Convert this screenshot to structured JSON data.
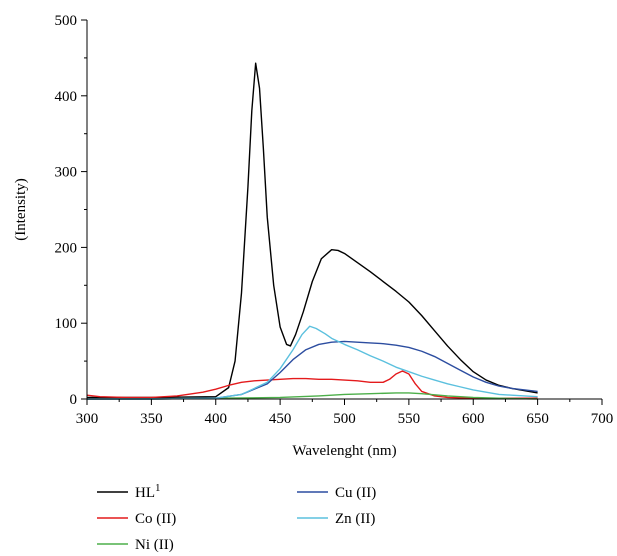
{
  "chart_data": {
    "type": "line",
    "xlabel": "Wavelenght (nm)",
    "ylabel": "(Intensity)",
    "xlim": [
      300,
      700
    ],
    "ylim": [
      0,
      500
    ],
    "x_ticks": [
      300,
      350,
      400,
      450,
      500,
      550,
      600,
      650,
      700
    ],
    "y_ticks": [
      0,
      100,
      200,
      300,
      400,
      500
    ],
    "grid": false,
    "legend_position": "bottom",
    "series": [
      {
        "name": "HL",
        "name_superscript": "1",
        "color": "#000000",
        "x": [
          300,
          350,
          400,
          410,
          415,
          420,
          425,
          428,
          431,
          434,
          437,
          440,
          445,
          450,
          455,
          458,
          462,
          468,
          475,
          482,
          490,
          495,
          500,
          510,
          520,
          530,
          540,
          550,
          560,
          570,
          580,
          590,
          600,
          610,
          620,
          630,
          640,
          650
        ],
        "y": [
          2,
          2,
          3,
          15,
          50,
          140,
          280,
          380,
          443,
          410,
          330,
          240,
          150,
          95,
          72,
          70,
          85,
          115,
          155,
          185,
          197,
          196,
          192,
          180,
          168,
          155,
          142,
          128,
          110,
          90,
          70,
          52,
          36,
          25,
          18,
          14,
          11,
          8
        ]
      },
      {
        "name": "Co (II)",
        "color": "#e41a1c",
        "x": [
          300,
          310,
          330,
          350,
          370,
          390,
          400,
          410,
          420,
          430,
          440,
          450,
          460,
          470,
          480,
          490,
          500,
          510,
          520,
          530,
          535,
          540,
          545,
          550,
          555,
          560,
          570,
          580,
          600,
          620,
          650
        ],
        "y": [
          5,
          3,
          2,
          2,
          4,
          9,
          13,
          18,
          22,
          24,
          25,
          26,
          27,
          27,
          26,
          26,
          25,
          24,
          22,
          22,
          26,
          33,
          37,
          33,
          20,
          10,
          4,
          2,
          1,
          1,
          1
        ]
      },
      {
        "name": "Ni (II)",
        "color": "#4daf4a",
        "x": [
          300,
          350,
          400,
          450,
          480,
          500,
          520,
          540,
          550,
          560,
          580,
          600,
          620,
          650
        ],
        "y": [
          0,
          0,
          1,
          2,
          4,
          6,
          7,
          8,
          8,
          7,
          4,
          2,
          1,
          0
        ]
      },
      {
        "name": "Cu (II)",
        "color": "#2c4da0",
        "x": [
          300,
          350,
          400,
          420,
          440,
          450,
          460,
          470,
          480,
          490,
          500,
          510,
          520,
          530,
          540,
          550,
          560,
          570,
          580,
          590,
          600,
          610,
          620,
          630,
          640,
          650
        ],
        "y": [
          0,
          0,
          1,
          6,
          20,
          35,
          52,
          65,
          72,
          75,
          76,
          75,
          74,
          73,
          71,
          68,
          63,
          56,
          47,
          38,
          29,
          22,
          17,
          14,
          12,
          10
        ]
      },
      {
        "name": "Zn (II)",
        "color": "#5bc0de",
        "x": [
          300,
          350,
          400,
          420,
          440,
          450,
          460,
          467,
          473,
          478,
          485,
          490,
          500,
          510,
          520,
          530,
          540,
          550,
          560,
          570,
          580,
          590,
          600,
          610,
          620,
          630,
          640,
          650
        ],
        "y": [
          0,
          0,
          1,
          6,
          22,
          40,
          65,
          85,
          96,
          93,
          86,
          80,
          72,
          65,
          57,
          50,
          42,
          36,
          30,
          25,
          20,
          16,
          12,
          9,
          6,
          5,
          4,
          3
        ]
      }
    ]
  }
}
